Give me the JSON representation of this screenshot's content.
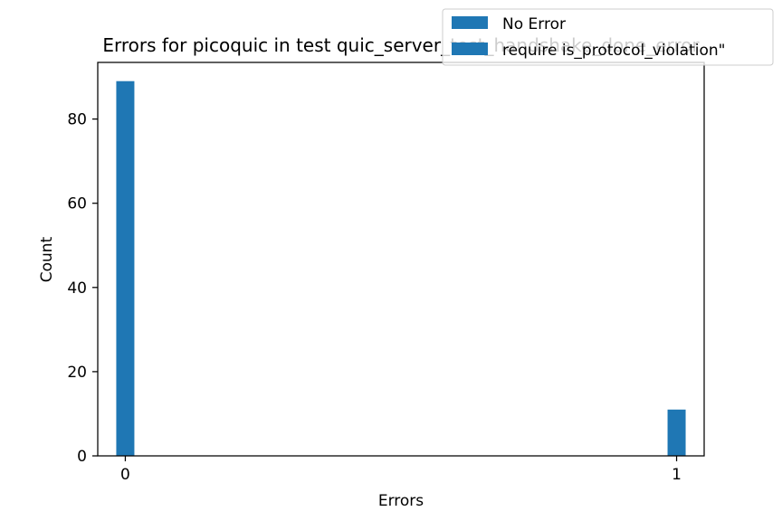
{
  "chart_data": {
    "type": "bar",
    "title": "Errors for picoquic in test quic_server_test_handshake_done_error",
    "xlabel": "Errors",
    "ylabel": "Count",
    "categories": [
      "0",
      "1"
    ],
    "x": [
      0,
      1
    ],
    "xlim": [
      -0.05,
      1.05
    ],
    "ylim": [
      0,
      93.45
    ],
    "xticks": [
      "0",
      "1"
    ],
    "yticks": [
      "0",
      "20",
      "40",
      "60",
      "80"
    ],
    "series": [
      {
        "name": "No Error",
        "color": "#1f77b4",
        "x": [
          0
        ],
        "values": [
          89
        ]
      },
      {
        "name": "require is_protocol_violation\"",
        "color": "#1f77b4",
        "x": [
          1
        ],
        "values": [
          11
        ]
      }
    ],
    "legend": {
      "placement": "top-right",
      "entries": [
        "No Error",
        "require is_protocol_violation\""
      ]
    },
    "grid": false
  }
}
